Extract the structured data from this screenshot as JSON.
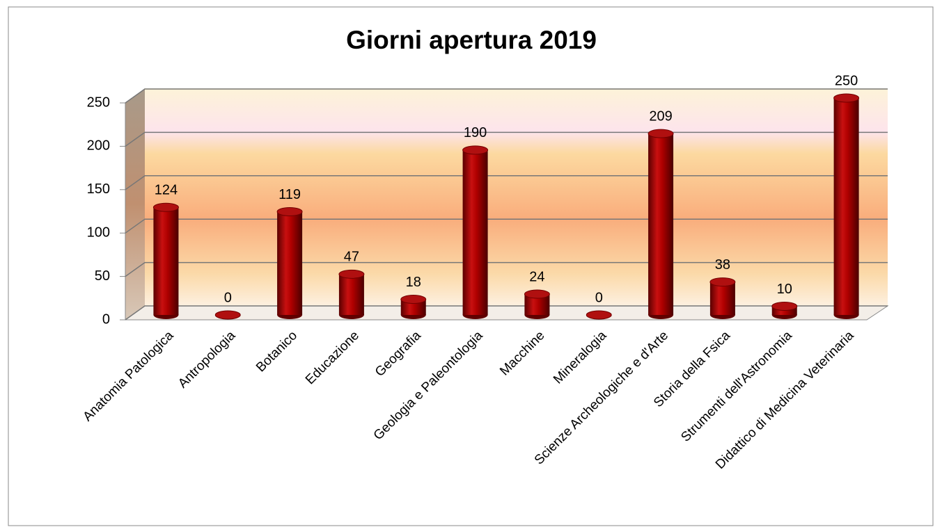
{
  "chart_data": {
    "type": "bar",
    "title": "Giorni apertura 2019",
    "categories": [
      "Anatomia Patologica",
      "Antropologia",
      "Botanico",
      "Educazione",
      "Geografia",
      "Geologia e Paleontologia",
      "Macchine",
      "Mineralogia",
      "Scienze Archeologiche e d'Arte",
      "Storia della Fsica",
      "Strumenti dell'Astronomia",
      "Didattico di Medicina Veterinaria"
    ],
    "values": [
      124,
      0,
      119,
      47,
      18,
      190,
      24,
      0,
      209,
      38,
      10,
      250
    ],
    "color": "#a00000",
    "ylim": [
      0,
      250
    ],
    "yticks": [
      0,
      50,
      100,
      150,
      200,
      250
    ],
    "grid": true
  }
}
